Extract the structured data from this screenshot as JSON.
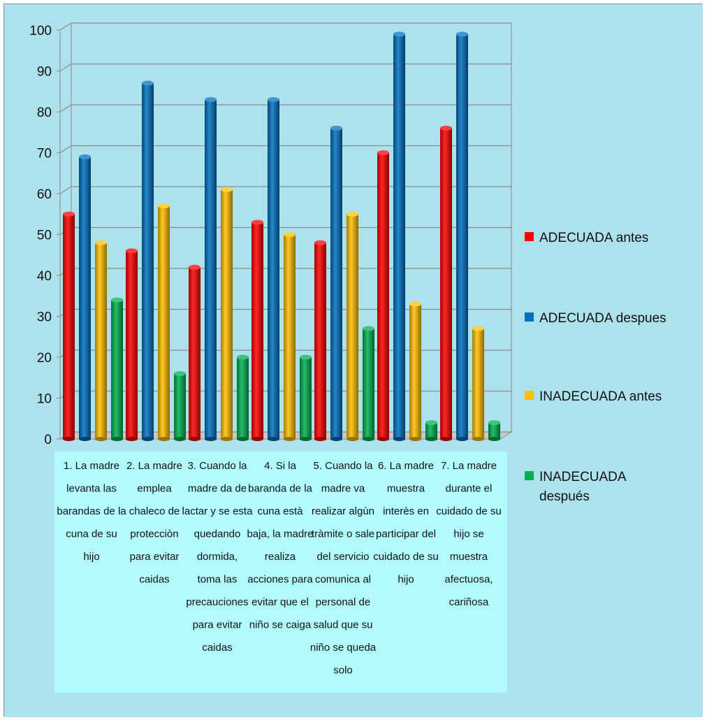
{
  "chart_data": {
    "type": "bar",
    "ylim": [
      0,
      100
    ],
    "yticks": [
      0,
      10,
      20,
      30,
      40,
      50,
      60,
      70,
      80,
      90,
      100
    ],
    "grid": true,
    "legend_position": "right",
    "background": "#ade2ec",
    "category_area_color": "#b1fbfc",
    "categories": [
      "1. La madre levanta las barandas de la cuna de su hijo",
      "2. La madre emplea chaleco de protecciòn para evitar caidas",
      "3. Cuando la madre da de lactar y se esta quedando dormida, toma las precauciones para evitar caidas",
      "4. Si la baranda de la cuna està baja, la madre realiza acciones para evitar que el niño se caiga",
      "5. Cuando la madre va realizar algùn tràmite o sale del servicio comunica al personal de salud que su niño se queda solo",
      "6. La madre muestra interès en participar del cuidado de su hijo",
      "7. La madre durante el cuidado de su hijo se muestra afectuosa, cariñosa"
    ],
    "category_lines": [
      [
        "1. La madre",
        "levanta las",
        "barandas de la",
        "cuna de su",
        "hijo"
      ],
      [
        "2. La madre",
        "emplea",
        "chaleco de",
        "protecciòn",
        "para evitar",
        "caidas"
      ],
      [
        "3. Cuando la",
        "madre da de",
        "lactar y se esta",
        "quedando",
        "dormida,",
        "toma las",
        "precauciones",
        "para evitar",
        "caidas"
      ],
      [
        "4. Si la",
        "baranda de la",
        "cuna està",
        "baja, la madre",
        "realiza",
        "acciones para",
        "evitar que el",
        "niño se caiga"
      ],
      [
        "5. Cuando la",
        "madre va",
        "realizar algùn",
        "tràmite o sale",
        "del servicio",
        "comunica al",
        "personal de",
        "salud que su",
        "niño se queda",
        "solo"
      ],
      [
        "6. La madre",
        "muestra",
        "interès en",
        "participar del",
        "cuidado de su",
        "hijo"
      ],
      [
        "7. La madre",
        "durante el",
        "cuidado de su",
        "hijo se",
        "muestra",
        "afectuosa,",
        "cariñosa"
      ]
    ],
    "series": [
      {
        "name": "ADECUADA antes",
        "legend_lines": [
          "ADECUADA antes"
        ],
        "color": "#ff0000",
        "values": [
          55,
          46,
          42,
          53,
          48,
          70,
          76
        ]
      },
      {
        "name": "ADECUADA despues",
        "legend_lines": [
          "ADECUADA despues"
        ],
        "color": "#0070c0",
        "values": [
          69,
          87,
          83,
          83,
          76,
          99,
          99
        ]
      },
      {
        "name": "INADECUADA antes",
        "legend_lines": [
          "INADECUADA antes"
        ],
        "color": "#ffc000",
        "values": [
          48,
          57,
          61,
          50,
          55,
          33,
          27
        ]
      },
      {
        "name": "INADECUADA después",
        "legend_lines": [
          "INADECUADA",
          "después"
        ],
        "color": "#00b050",
        "values": [
          34,
          16,
          20,
          20,
          27,
          4,
          4
        ]
      }
    ]
  }
}
